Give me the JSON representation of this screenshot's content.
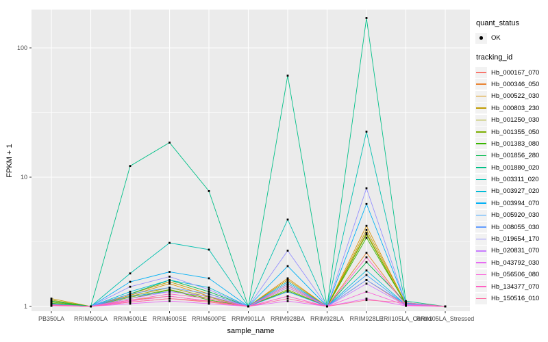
{
  "legend": {
    "quant_status": {
      "title": "quant_status",
      "items": [
        "OK"
      ]
    },
    "tracking_id": {
      "title": "tracking_id"
    }
  },
  "icons": {
    "ok_point": "filled-black-point"
  },
  "chart_data": {
    "type": "line",
    "title": "",
    "xlabel": "sample_name",
    "ylabel": "FPKM + 1",
    "y_scale": "log10",
    "ylim": [
      1,
      200
    ],
    "y_ticks": [
      1,
      10,
      100
    ],
    "y_minor": [
      3.1623,
      31.623
    ],
    "grid": "white-on-gray",
    "legend_position": "right",
    "point_marker": "small-black-point",
    "categories": [
      "PB350LA",
      "RRIM600LA",
      "RRIM600LE",
      "RRIM600SE",
      "RRIM600PE",
      "RRIM901LA",
      "RRIM928BA",
      "RRIM928LA",
      "RRIM928LE",
      "RRII105LA_Control",
      "RRII105LA_Stressed"
    ],
    "series": [
      {
        "name": "Hb_000167_070",
        "color": "#F8766D",
        "values": [
          1.05,
          1.0,
          1.08,
          1.15,
          1.08,
          1.0,
          1.2,
          1.0,
          1.6,
          1.02,
          1.0
        ]
      },
      {
        "name": "Hb_000346_050",
        "color": "#EA8331",
        "values": [
          1.04,
          1.0,
          1.12,
          1.2,
          1.1,
          1.0,
          1.5,
          1.0,
          2.6,
          1.03,
          1.0
        ]
      },
      {
        "name": "Hb_000522_030",
        "color": "#D89000",
        "values": [
          1.1,
          1.0,
          1.22,
          1.5,
          1.2,
          1.0,
          1.65,
          1.0,
          4.2,
          1.05,
          1.0
        ]
      },
      {
        "name": "Hb_000803_230",
        "color": "#C09B00",
        "values": [
          1.15,
          1.0,
          1.25,
          1.55,
          1.25,
          1.0,
          1.6,
          1.0,
          3.9,
          1.06,
          1.0
        ]
      },
      {
        "name": "Hb_001250_030",
        "color": "#A3A500",
        "values": [
          1.12,
          1.0,
          1.2,
          1.4,
          1.18,
          1.0,
          1.4,
          1.0,
          3.7,
          1.04,
          1.0
        ]
      },
      {
        "name": "Hb_001355_050",
        "color": "#7CAE00",
        "values": [
          1.08,
          1.0,
          1.18,
          1.35,
          1.15,
          1.0,
          1.35,
          1.0,
          3.6,
          1.04,
          1.0
        ]
      },
      {
        "name": "Hb_001383_080",
        "color": "#39B600",
        "values": [
          1.06,
          1.0,
          1.15,
          1.34,
          1.12,
          1.0,
          1.32,
          1.0,
          3.4,
          1.05,
          1.0
        ]
      },
      {
        "name": "Hb_001856_280",
        "color": "#00BB4E",
        "values": [
          1.1,
          1.0,
          1.25,
          1.6,
          1.3,
          1.0,
          1.45,
          1.0,
          2.2,
          1.07,
          1.0
        ]
      },
      {
        "name": "Hb_001880_020",
        "color": "#00C087",
        "values": [
          1.05,
          1.0,
          12.2,
          18.5,
          7.8,
          1.0,
          61,
          1.0,
          170,
          1.1,
          1.0
        ]
      },
      {
        "name": "Hb_003311_020",
        "color": "#00C0AF",
        "values": [
          1.02,
          1.0,
          1.8,
          3.1,
          2.75,
          1.0,
          4.7,
          1.0,
          22.5,
          1.05,
          1.0
        ]
      },
      {
        "name": "Hb_003927_020",
        "color": "#00BCD8",
        "values": [
          1.02,
          1.0,
          1.3,
          1.6,
          1.4,
          1.0,
          1.55,
          1.0,
          1.9,
          1.03,
          1.0
        ]
      },
      {
        "name": "Hb_003994_070",
        "color": "#00B0F6",
        "values": [
          1.03,
          1.0,
          1.55,
          1.85,
          1.65,
          1.0,
          2.05,
          1.0,
          6.2,
          1.06,
          1.0
        ]
      },
      {
        "name": "Hb_005920_030",
        "color": "#35A2FF",
        "values": [
          1.02,
          1.0,
          1.2,
          1.3,
          1.2,
          1.0,
          1.3,
          1.0,
          1.75,
          1.03,
          1.0
        ]
      },
      {
        "name": "Hb_008055_030",
        "color": "#619CFF",
        "values": [
          1.04,
          1.0,
          1.25,
          1.4,
          1.25,
          1.0,
          1.5,
          1.0,
          1.6,
          1.04,
          1.0
        ]
      },
      {
        "name": "Hb_019654_170",
        "color": "#9590FF",
        "values": [
          1.03,
          1.0,
          1.42,
          1.7,
          1.35,
          1.0,
          2.7,
          1.0,
          8.2,
          1.05,
          1.0
        ]
      },
      {
        "name": "Hb_020831_070",
        "color": "#C77CFF",
        "values": [
          1.02,
          1.0,
          1.15,
          1.3,
          1.2,
          1.0,
          1.4,
          1.0,
          1.5,
          1.02,
          1.0
        ]
      },
      {
        "name": "Hb_043792_030",
        "color": "#E76BF3",
        "values": [
          1.01,
          1.0,
          1.05,
          1.1,
          1.05,
          1.0,
          1.1,
          1.0,
          1.15,
          1.01,
          1.0
        ]
      },
      {
        "name": "Hb_056506_080",
        "color": "#FA62DB",
        "values": [
          1.02,
          1.0,
          1.1,
          1.2,
          1.1,
          1.0,
          1.2,
          1.0,
          1.3,
          1.02,
          1.0
        ]
      },
      {
        "name": "Hb_134377_070",
        "color": "#FF61C3",
        "values": [
          1.03,
          1.0,
          1.12,
          1.25,
          1.15,
          1.0,
          1.45,
          1.0,
          2.4,
          1.03,
          1.0
        ]
      },
      {
        "name": "Hb_150516_010",
        "color": "#FF689F",
        "values": [
          1.02,
          1.0,
          1.08,
          1.15,
          1.1,
          1.0,
          1.15,
          1.0,
          1.12,
          1.07,
          1.0
        ]
      }
    ],
    "colors": {
      "panel_bg": "#EBEBEB",
      "grid": "#FFFFFF",
      "point": "#000000",
      "tick_text": "#4D4D4D",
      "tick_mark": "#333333"
    }
  }
}
